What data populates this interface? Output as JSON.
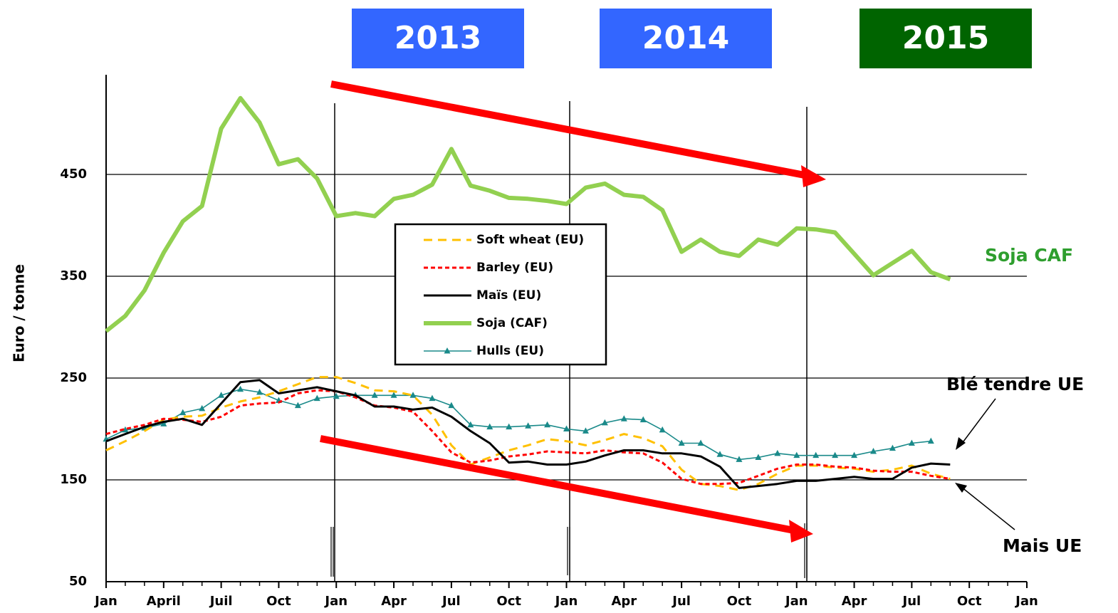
{
  "chart_data": {
    "type": "line",
    "y_label": "Euro / tonne",
    "periods": [
      {
        "label": "2013",
        "color": "#3366ff"
      },
      {
        "label": "2014",
        "color": "#3366ff"
      },
      {
        "label": "2015",
        "color": "#006400"
      }
    ],
    "annotations": [
      "Soja CAF",
      "Blé tendre UE",
      "Mais UE"
    ],
    "x": [
      0,
      1,
      2,
      3,
      4,
      5,
      6,
      7,
      8,
      9,
      10,
      11,
      12,
      13,
      14,
      15,
      16,
      17,
      18,
      19,
      20,
      21,
      22,
      23,
      24,
      25,
      26,
      27,
      28,
      29,
      30,
      31,
      32,
      33,
      34,
      35,
      36,
      37,
      38,
      39,
      40,
      41,
      42,
      43,
      44
    ],
    "xlim": [
      0,
      48
    ],
    "xticks": [
      {
        "value": 0,
        "label": "Jan"
      },
      {
        "value": 3,
        "label": "April"
      },
      {
        "value": 6,
        "label": "Juil"
      },
      {
        "value": 9,
        "label": "Oct"
      },
      {
        "value": 12,
        "label": "Jan"
      },
      {
        "value": 15,
        "label": "Apr"
      },
      {
        "value": 18,
        "label": "Jul"
      },
      {
        "value": 21,
        "label": "Oct"
      },
      {
        "value": 24,
        "label": "Jan"
      },
      {
        "value": 27,
        "label": "Apr"
      },
      {
        "value": 30,
        "label": "Jul"
      },
      {
        "value": 33,
        "label": "Oct"
      },
      {
        "value": 36,
        "label": "Jan"
      },
      {
        "value": 39,
        "label": "Apr"
      },
      {
        "value": 42,
        "label": "Jul"
      },
      {
        "value": 45,
        "label": "Oct"
      },
      {
        "value": 48,
        "label": "Jan"
      }
    ],
    "ylim": [
      50,
      550
    ],
    "yticks": [
      50,
      150,
      250,
      350,
      450
    ],
    "grid": true,
    "series": [
      {
        "name": "Soft wheat (EU)",
        "color": "#ffc000",
        "style": "dashed",
        "values": [
          179,
          188,
          198,
          209,
          212,
          213,
          221,
          227,
          231,
          237,
          244,
          251,
          251,
          245,
          238,
          237,
          233,
          214,
          184,
          165,
          172,
          179,
          184,
          190,
          188,
          184,
          189,
          195,
          191,
          183,
          160,
          146,
          144,
          140,
          146,
          156,
          164,
          164,
          162,
          161,
          158,
          160,
          164,
          156,
          151
        ]
      },
      {
        "name": "Barley (EU)",
        "color": "#ff0000",
        "style": "dotted",
        "values": [
          195,
          200,
          204,
          210,
          209,
          207,
          212,
          223,
          225,
          226,
          235,
          238,
          237,
          231,
          223,
          221,
          217,
          198,
          177,
          167,
          169,
          173,
          175,
          178,
          177,
          176,
          179,
          177,
          176,
          167,
          151,
          146,
          146,
          147,
          154,
          161,
          165,
          165,
          163,
          162,
          159,
          158,
          158,
          154,
          151
        ]
      },
      {
        "name": "Maïs (EU)",
        "color": "#000000",
        "style": "solid",
        "values": [
          188,
          195,
          202,
          207,
          210,
          204,
          225,
          246,
          248,
          235,
          238,
          241,
          237,
          233,
          222,
          222,
          219,
          221,
          212,
          198,
          186,
          167,
          168,
          165,
          165,
          168,
          174,
          179,
          179,
          176,
          176,
          173,
          163,
          142,
          144,
          146,
          149,
          149,
          151,
          153,
          151,
          151,
          162,
          166,
          165
        ]
      },
      {
        "name": "Soja (CAF)",
        "color": "#92d050",
        "style": "thick",
        "values": [
          296,
          311,
          336,
          373,
          404,
          419,
          495,
          525,
          501,
          460,
          465,
          446,
          409,
          412,
          409,
          426,
          430,
          440,
          475,
          439,
          434,
          427,
          426,
          424,
          421,
          437,
          441,
          430,
          428,
          415,
          374,
          386,
          374,
          370,
          386,
          381,
          397,
          396,
          393,
          372,
          351,
          363,
          375,
          354,
          347
        ]
      },
      {
        "name": "Hulls  (EU)",
        "color": "#1a8a8a",
        "style": "marker",
        "values": [
          190,
          199,
          201,
          205,
          216,
          220,
          233,
          239,
          236,
          228,
          223,
          230,
          232,
          233,
          233,
          233,
          233,
          230,
          223,
          204,
          202,
          202,
          203,
          204,
          200,
          198,
          206,
          210,
          209,
          199,
          186,
          186,
          175,
          170,
          172,
          176,
          174,
          174,
          174,
          174,
          178,
          181,
          186,
          188,
          null
        ]
      }
    ]
  }
}
